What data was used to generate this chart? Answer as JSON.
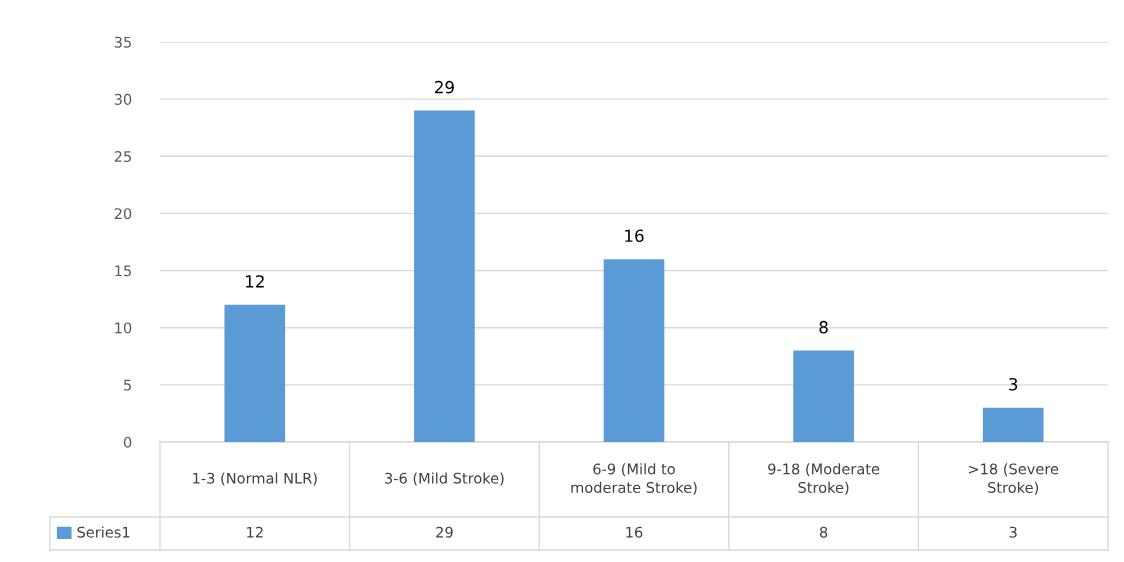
{
  "chart_data": {
    "type": "bar",
    "categories": [
      "1-3 (Normal NLR)",
      "3-6 (Mild Stroke)",
      "6-9 (Mild to moderate Stroke)",
      "9-18 (Moderate Stroke)",
      ">18 (Severe Stroke)"
    ],
    "series": [
      {
        "name": "Series1",
        "color": "#5b9bd5",
        "values": [
          12,
          29,
          16,
          8,
          3
        ],
        "value_labels": [
          "12",
          "29",
          "16",
          "8",
          "3"
        ]
      }
    ],
    "ylim": [
      0,
      35
    ],
    "yticks": [
      0,
      5,
      10,
      15,
      20,
      25,
      30,
      35
    ],
    "grid": "y",
    "data_labels": true,
    "annotations": [
      "12",
      "29",
      "16",
      "8",
      "3"
    ],
    "legend": "bottom"
  }
}
